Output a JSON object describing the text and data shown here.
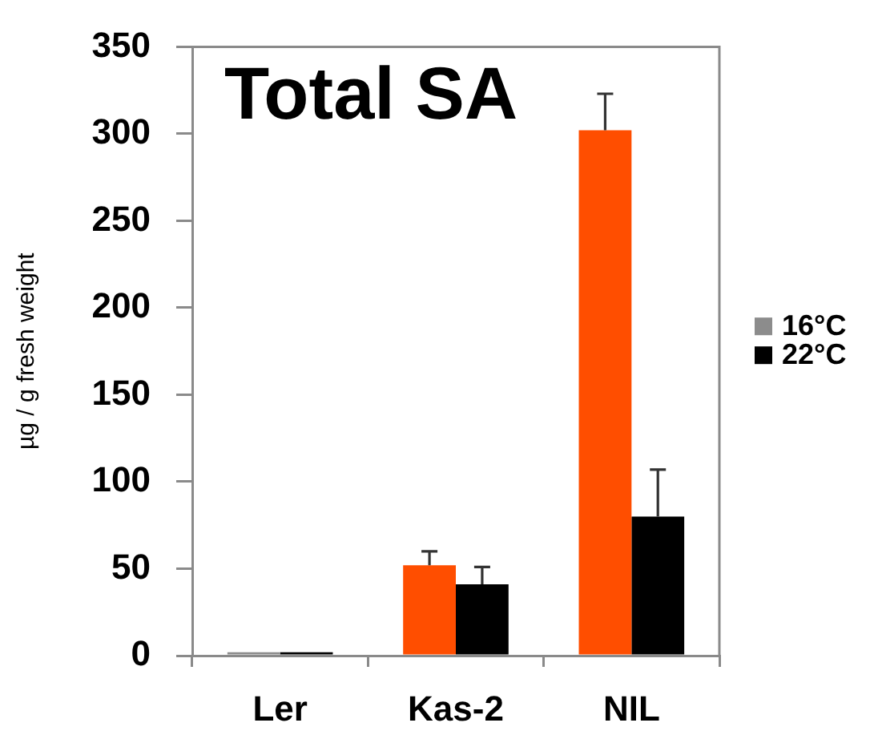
{
  "chart_data": {
    "type": "bar",
    "title": "Total SA",
    "ylabel": "µg / g fresh weight",
    "categories": [
      "Ler",
      "Kas-2",
      "NIL"
    ],
    "series": [
      {
        "name": "16°C",
        "color": "#8c8c8c",
        "colors": [
          "#8c8c8c",
          "#ff4e00",
          "#ff4e00"
        ],
        "values": [
          2,
          52,
          302
        ],
        "errors": [
          null,
          [
            52,
            60
          ],
          [
            302,
            323
          ]
        ]
      },
      {
        "name": "22°C",
        "color": "#000000",
        "values": [
          2,
          41,
          80
        ],
        "errors": [
          null,
          [
            41,
            51
          ],
          [
            80,
            107
          ]
        ]
      }
    ],
    "ylim": [
      0,
      350
    ],
    "yticks": [
      0,
      50,
      100,
      150,
      200,
      250,
      300,
      350
    ],
    "legend": "right"
  }
}
